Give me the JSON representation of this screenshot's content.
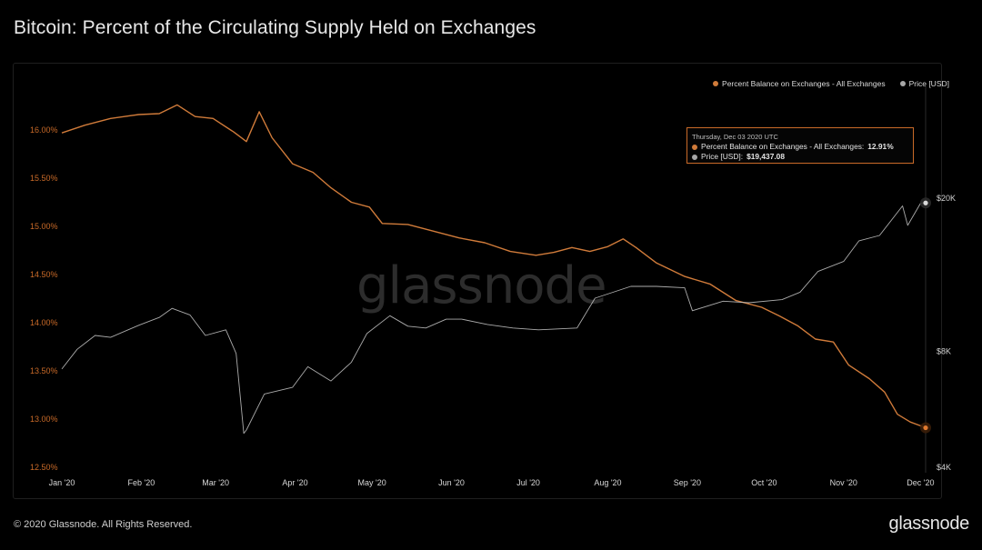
{
  "title": "Bitcoin: Percent of the Circulating Supply Held on Exchanges",
  "footer": {
    "copyright": "© 2020 Glassnode. All Rights Reserved.",
    "logo": "glassnode"
  },
  "watermark": "glassnode",
  "colors": {
    "background": "#000000",
    "balance": "#d07b3a",
    "price": "#c9c9c9",
    "grid": "#1a1a1a"
  },
  "legend": {
    "balance_label": "Percent Balance on Exchanges - All Exchanges",
    "price_label": "Price [USD]"
  },
  "tooltip": {
    "date": "Thursday, Dec 03 2020 UTC",
    "balance_label": "Percent Balance on Exchanges - All Exchanges:",
    "balance_value": "12.91%",
    "price_label": "Price [USD]:",
    "price_value": "$19,437.08"
  },
  "chart_data": {
    "type": "line",
    "title": "Bitcoin: Percent of the Circulating Supply Held on Exchanges",
    "x_tick_labels": [
      "Jan '20",
      "Feb '20",
      "Mar '20",
      "Apr '20",
      "May '20",
      "Jun '20",
      "Jul '20",
      "Aug '20",
      "Sep '20",
      "Oct '20",
      "Nov '20",
      "Dec '20"
    ],
    "y_left_ticks": [
      "16.00%",
      "15.50%",
      "15.00%",
      "14.50%",
      "14.00%",
      "13.50%",
      "13.00%",
      "12.50%"
    ],
    "y_left_range": [
      12.5,
      16.0
    ],
    "y_right_ticks": [
      "$20K",
      "$8K",
      "$4K"
    ],
    "y_right_scale": "log",
    "y_right_range": [
      4000,
      20000
    ],
    "grid": false,
    "legend_position": "top-right",
    "series": [
      {
        "name": "Percent Balance on Exchanges - All Exchanges",
        "axis": "left",
        "color": "#d07b3a",
        "points": [
          [
            "2020-01-01",
            15.97
          ],
          [
            "2020-01-10",
            16.05
          ],
          [
            "2020-01-20",
            16.12
          ],
          [
            "2020-01-31",
            16.16
          ],
          [
            "2020-02-08",
            16.17
          ],
          [
            "2020-02-15",
            16.26
          ],
          [
            "2020-02-22",
            16.14
          ],
          [
            "2020-02-29",
            16.12
          ],
          [
            "2020-03-08",
            15.98
          ],
          [
            "2020-03-13",
            15.88
          ],
          [
            "2020-03-18",
            16.19
          ],
          [
            "2020-03-23",
            15.92
          ],
          [
            "2020-03-31",
            15.65
          ],
          [
            "2020-04-08",
            15.56
          ],
          [
            "2020-04-15",
            15.4
          ],
          [
            "2020-04-23",
            15.25
          ],
          [
            "2020-04-30",
            15.2
          ],
          [
            "2020-05-05",
            15.03
          ],
          [
            "2020-05-15",
            15.02
          ],
          [
            "2020-05-25",
            14.95
          ],
          [
            "2020-06-04",
            14.88
          ],
          [
            "2020-06-14",
            14.83
          ],
          [
            "2020-06-24",
            14.74
          ],
          [
            "2020-07-04",
            14.7
          ],
          [
            "2020-07-11",
            14.73
          ],
          [
            "2020-07-18",
            14.78
          ],
          [
            "2020-07-25",
            14.74
          ],
          [
            "2020-08-01",
            14.79
          ],
          [
            "2020-08-07",
            14.87
          ],
          [
            "2020-08-12",
            14.78
          ],
          [
            "2020-08-20",
            14.62
          ],
          [
            "2020-08-31",
            14.48
          ],
          [
            "2020-09-10",
            14.4
          ],
          [
            "2020-09-20",
            14.23
          ],
          [
            "2020-09-30",
            14.16
          ],
          [
            "2020-10-07",
            14.07
          ],
          [
            "2020-10-14",
            13.97
          ],
          [
            "2020-10-21",
            13.83
          ],
          [
            "2020-10-28",
            13.8
          ],
          [
            "2020-11-03",
            13.56
          ],
          [
            "2020-11-11",
            13.42
          ],
          [
            "2020-11-17",
            13.28
          ],
          [
            "2020-11-22",
            13.05
          ],
          [
            "2020-11-27",
            12.97
          ],
          [
            "2020-12-01",
            12.93
          ],
          [
            "2020-12-03",
            12.91
          ]
        ]
      },
      {
        "name": "Price [USD]",
        "axis": "right",
        "color": "#c9c9c9",
        "points": [
          [
            "2020-01-01",
            7200
          ],
          [
            "2020-01-07",
            8100
          ],
          [
            "2020-01-14",
            8800
          ],
          [
            "2020-01-20",
            8700
          ],
          [
            "2020-01-31",
            9350
          ],
          [
            "2020-02-08",
            9800
          ],
          [
            "2020-02-13",
            10350
          ],
          [
            "2020-02-20",
            9950
          ],
          [
            "2020-02-26",
            8800
          ],
          [
            "2020-03-05",
            9100
          ],
          [
            "2020-03-09",
            7900
          ],
          [
            "2020-03-12",
            4900
          ],
          [
            "2020-03-13",
            5000
          ],
          [
            "2020-03-20",
            6200
          ],
          [
            "2020-03-31",
            6450
          ],
          [
            "2020-04-06",
            7300
          ],
          [
            "2020-04-15",
            6700
          ],
          [
            "2020-04-23",
            7500
          ],
          [
            "2020-04-29",
            8900
          ],
          [
            "2020-05-08",
            9900
          ],
          [
            "2020-05-15",
            9300
          ],
          [
            "2020-05-22",
            9200
          ],
          [
            "2020-05-30",
            9700
          ],
          [
            "2020-06-05",
            9700
          ],
          [
            "2020-06-15",
            9400
          ],
          [
            "2020-06-25",
            9200
          ],
          [
            "2020-07-05",
            9100
          ],
          [
            "2020-07-20",
            9200
          ],
          [
            "2020-07-27",
            11000
          ],
          [
            "2020-08-10",
            11800
          ],
          [
            "2020-08-20",
            11800
          ],
          [
            "2020-08-31",
            11700
          ],
          [
            "2020-09-03",
            10200
          ],
          [
            "2020-09-15",
            10800
          ],
          [
            "2020-09-25",
            10700
          ],
          [
            "2020-10-08",
            10900
          ],
          [
            "2020-10-15",
            11400
          ],
          [
            "2020-10-22",
            12900
          ],
          [
            "2020-11-01",
            13700
          ],
          [
            "2020-11-07",
            15500
          ],
          [
            "2020-11-15",
            16000
          ],
          [
            "2020-11-24",
            19100
          ],
          [
            "2020-11-26",
            17000
          ],
          [
            "2020-12-01",
            19400
          ],
          [
            "2020-12-03",
            19437
          ]
        ]
      }
    ]
  }
}
